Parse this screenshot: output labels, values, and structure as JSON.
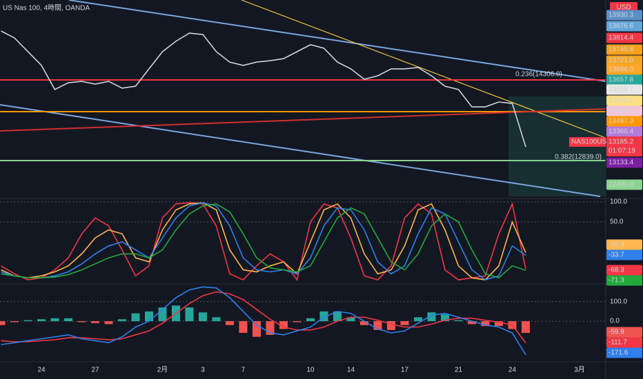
{
  "chart_data": [
    {
      "type": "line",
      "title": "US Nas 100, 4時間, OANDA",
      "currency": "USD",
      "symbol": "NAS100USD",
      "countdown": "01:07:19",
      "annotations": [
        "0.236(14306.0)",
        "0.382(12839.0)"
      ],
      "categories": [
        null,
        null,
        null,
        "24",
        null,
        null,
        null,
        "27",
        null,
        null,
        null,
        null,
        "2月",
        null,
        null,
        "3",
        null,
        null,
        "7",
        null,
        null,
        null,
        null,
        "10",
        null,
        null,
        "14",
        null,
        null,
        null,
        "17",
        null,
        null,
        null,
        "21",
        null,
        null,
        null,
        "24",
        null,
        null,
        null,
        null,
        "3月",
        null
      ],
      "color": "#d1d4dc",
      "values": [
        13853,
        13813,
        13734,
        13655,
        13516,
        13555,
        13563,
        13547,
        13563,
        13524,
        13535,
        13635,
        13734,
        13794,
        13841,
        13833,
        13734,
        13674,
        13655,
        13674,
        13682,
        13694,
        13734,
        13774,
        13754,
        13674,
        13635,
        13575,
        13595,
        13635,
        13635,
        13643,
        13595,
        13535,
        13516,
        13416,
        13416,
        13444,
        13436,
        13185.2,
        null,
        null,
        null,
        null,
        null
      ],
      "ylim": [
        12900,
        14000
      ],
      "tags": [
        {
          "value": 13930.3,
          "label": "13930.3",
          "color": "#5b8fc7"
        },
        {
          "value": 13876.6,
          "label": "13876.6",
          "color": "#64a6d8"
        },
        {
          "value": 13814.4,
          "label": "13814.4",
          "color": "#f23645"
        },
        {
          "value": 13745.8,
          "label": "13745.8",
          "color": "#f7a21b"
        },
        {
          "value": 13721,
          "label": "13721.0",
          "color": "#f5a623"
        },
        {
          "value": 13696,
          "label": "13696.0",
          "color": "#ffa726"
        },
        {
          "value": 13657.8,
          "label": "13657.8",
          "color": "#26a69a"
        },
        {
          "value": 13656.7,
          "label": "13656.7",
          "color": "#e8e8e8"
        },
        {
          "value": 13608.2,
          "label": "13608.2",
          "color": "#ffe082"
        },
        {
          "value": 13587.4,
          "label": "13587.4",
          "color": "#f3c5d9"
        },
        {
          "value": 13497.3,
          "label": "13497.3",
          "color": "#ff9800"
        },
        {
          "value": 13360.4,
          "label": "13360.4",
          "color": "#b57bd8"
        },
        {
          "value": 13133.4,
          "label": "13133.4",
          "color": "#7b1fa2"
        },
        {
          "value": 12400,
          "label": "12400.0",
          "color": "#8bd48f"
        }
      ]
    },
    {
      "type": "line",
      "ylim": [
        -100,
        100
      ],
      "yticks": [
        {
          "value": 100,
          "label": "100.0"
        },
        {
          "value": 50,
          "label": "50.0"
        }
      ],
      "series": [
        {
          "color": "#f23645",
          "values": [
            -60,
            -80,
            -95,
            -90,
            -70,
            -40,
            20,
            60,
            40,
            -20,
            -85,
            -60,
            60,
            95,
            98,
            95,
            40,
            -80,
            -95,
            -60,
            -30,
            -50,
            -95,
            50,
            95,
            85,
            10,
            -85,
            -95,
            -60,
            60,
            95,
            70,
            -70,
            -95,
            -90,
            -85,
            20,
            95,
            -68.3
          ]
        },
        {
          "color": "#ffb74d",
          "values": [
            -70,
            -85,
            -90,
            -85,
            -75,
            -60,
            -30,
            10,
            30,
            20,
            -40,
            -50,
            30,
            80,
            95,
            98,
            80,
            -20,
            -70,
            -75,
            -60,
            -50,
            -80,
            0,
            80,
            95,
            60,
            -30,
            -80,
            -70,
            -10,
            80,
            95,
            30,
            -60,
            -90,
            -95,
            -60,
            50,
            -26.9
          ]
        },
        {
          "color": "#2f80ed",
          "values": [
            -75,
            -85,
            -90,
            -90,
            -85,
            -75,
            -55,
            -30,
            -10,
            0,
            -20,
            -40,
            10,
            60,
            90,
            98,
            90,
            40,
            -40,
            -70,
            -75,
            -70,
            -80,
            -40,
            40,
            85,
            80,
            30,
            -50,
            -80,
            -60,
            20,
            85,
            70,
            0,
            -70,
            -95,
            -85,
            -10,
            -33.7
          ]
        },
        {
          "color": "#22a93b",
          "values": [
            -80,
            -85,
            -90,
            -90,
            -88,
            -82,
            -70,
            -55,
            -40,
            -30,
            -30,
            -40,
            -20,
            30,
            70,
            90,
            95,
            75,
            20,
            -40,
            -65,
            -70,
            -75,
            -60,
            0,
            60,
            85,
            70,
            10,
            -50,
            -70,
            -30,
            40,
            70,
            50,
            -20,
            -80,
            -90,
            -60,
            -71.3
          ]
        }
      ]
    },
    {
      "type": "macd",
      "ylim": [
        -190,
        180
      ],
      "yticks": [
        {
          "value": 100,
          "label": "100.0"
        },
        {
          "value": 0,
          "label": "0.0"
        }
      ],
      "histogram": {
        "up": "#26a69a",
        "down": "#ef5350",
        "values": [
          -20,
          -5,
          5,
          10,
          15,
          15,
          -5,
          -10,
          -15,
          10,
          40,
          50,
          70,
          80,
          70,
          45,
          20,
          -20,
          -60,
          -80,
          -70,
          -40,
          -5,
          15,
          50,
          50,
          20,
          -20,
          -45,
          -45,
          -20,
          20,
          45,
          35,
          5,
          -15,
          -25,
          -25,
          -40,
          -59.9
        ]
      },
      "series": [
        {
          "color": "#f23645",
          "values": [
            -100,
            -105,
            -105,
            -100,
            -95,
            -85,
            -85,
            -90,
            -95,
            -90,
            -70,
            -50,
            -10,
            40,
            90,
            130,
            150,
            140,
            110,
            60,
            10,
            -30,
            -45,
            -45,
            -30,
            0,
            20,
            20,
            5,
            -15,
            -30,
            -30,
            -15,
            5,
            15,
            15,
            5,
            -5,
            -20,
            -111.7
          ]
        },
        {
          "color": "#2f80ed",
          "values": [
            -120,
            -110,
            -100,
            -90,
            -80,
            -70,
            -90,
            -100,
            -110,
            -80,
            -30,
            0,
            60,
            120,
            160,
            175,
            170,
            120,
            50,
            -20,
            -60,
            -70,
            -50,
            -30,
            20,
            50,
            40,
            0,
            -40,
            -60,
            -50,
            -10,
            30,
            40,
            20,
            0,
            -20,
            -30,
            -60,
            -171.6
          ]
        }
      ]
    }
  ]
}
